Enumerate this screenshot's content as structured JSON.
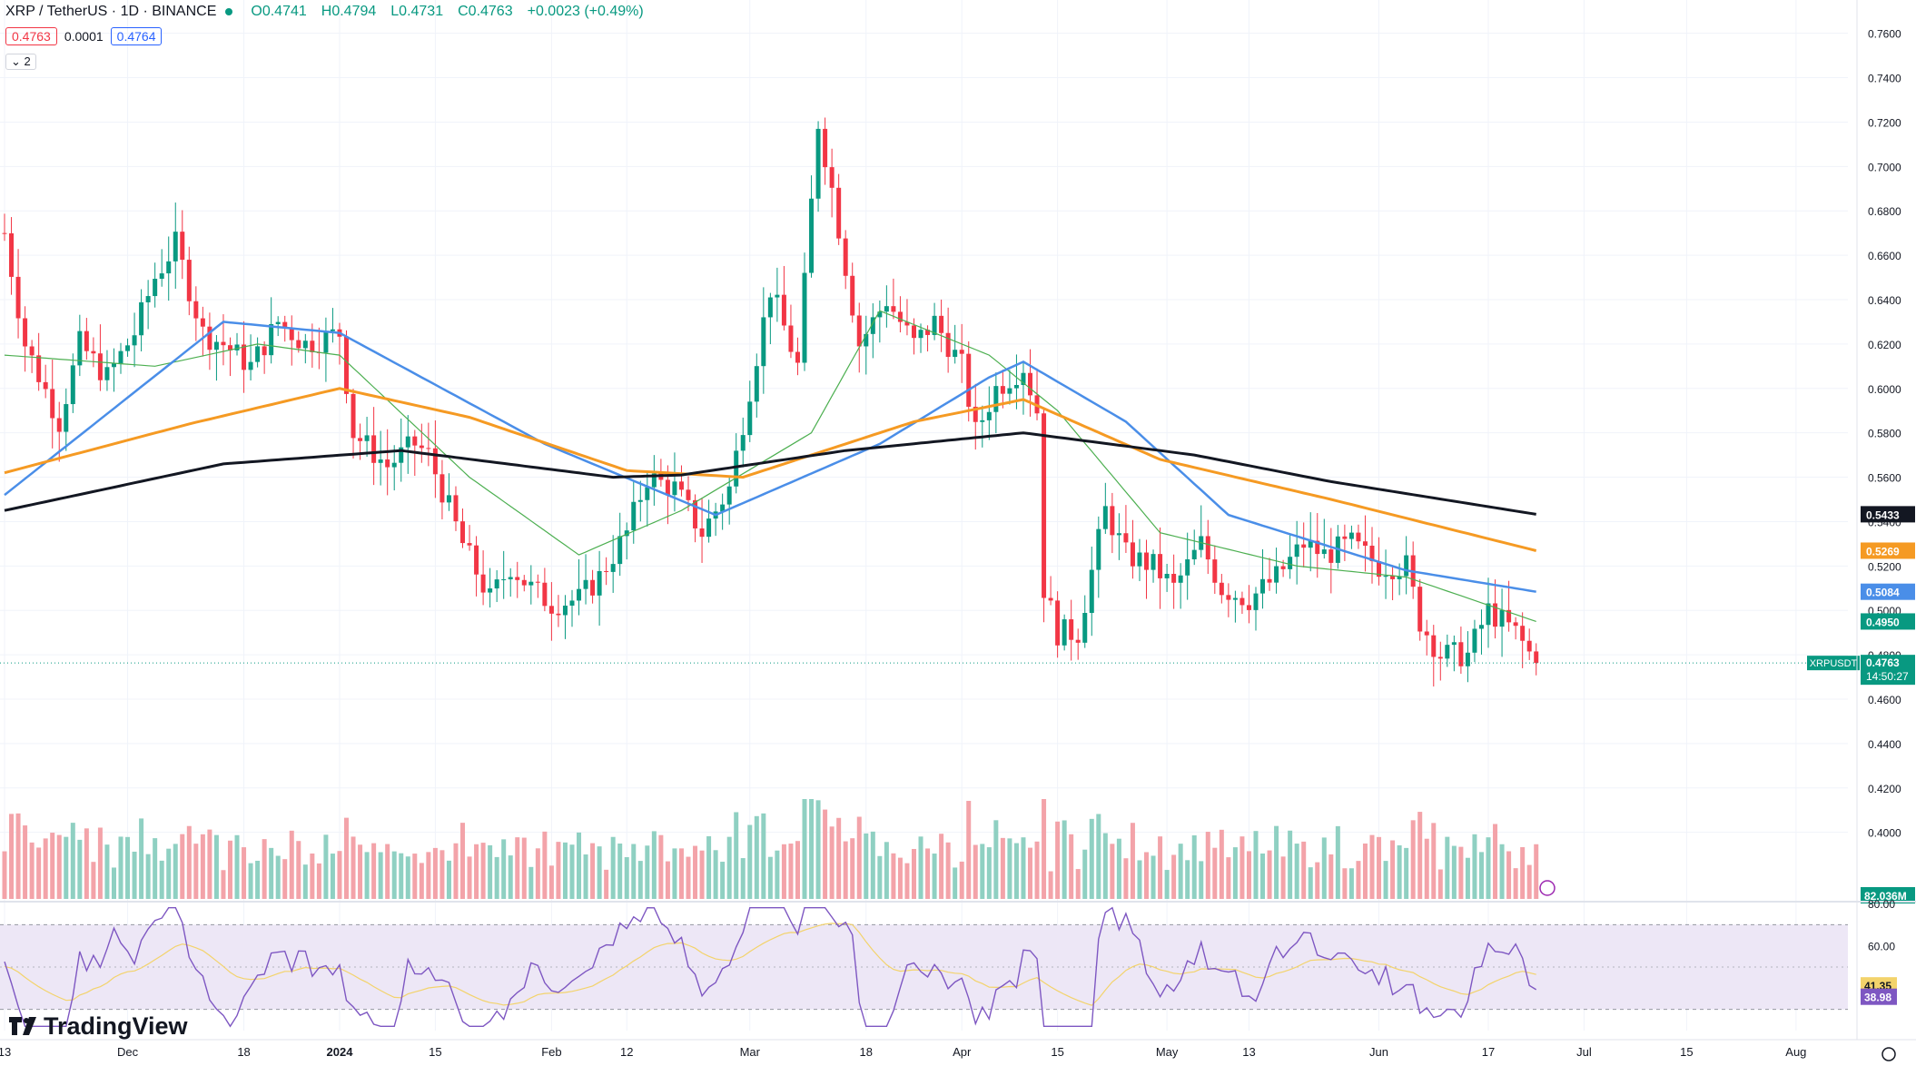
{
  "header": {
    "symbol": "XRP / TetherUS · 1D · BINANCE",
    "open": "O0.4741",
    "high": "H0.4794",
    "low": "L0.4731",
    "close": "C0.4763",
    "change": "+0.0023 (+0.49%)",
    "bid": "0.4763",
    "spread": "0.0001",
    "ask": "0.4764",
    "indicators_collapsed": "2"
  },
  "brand": {
    "name": "TradingView"
  },
  "colors": {
    "up": "#089981",
    "down": "#f23645",
    "up_vol": "#8fd0c2",
    "down_vol": "#f3a3a9",
    "ma_short": "#4caf50",
    "ma_mid": "#4a8ee8",
    "ma_long": "#f59a23",
    "ma_longest": "#131722",
    "rsi": "#7e57c2",
    "rsi_ma": "#f3d36b"
  },
  "chart_data": {
    "type": "candlestick",
    "symbol": "XRPUSDT",
    "interval": "1D",
    "ylim": [
      0.37,
      0.775
    ],
    "price_ticks": [
      "0.7600",
      "0.7400",
      "0.7200",
      "0.7000",
      "0.6800",
      "0.6600",
      "0.6400",
      "0.6200",
      "0.6000",
      "0.5800",
      "0.5600",
      "0.5400",
      "0.5200",
      "0.5000",
      "0.4800",
      "0.4600",
      "0.4400",
      "0.4200",
      "0.4000"
    ],
    "date_labels": [
      "13",
      "Dec",
      "18",
      "2024",
      "15",
      "Feb",
      "12",
      "Mar",
      "18",
      "Apr",
      "15",
      "May",
      "13",
      "Jun",
      "17",
      "Jul",
      "15",
      "Aug"
    ],
    "last_price": {
      "label": "XRPUSDT",
      "value": "0.4763",
      "countdown": "14:50:27"
    },
    "ma_labels": [
      {
        "value": "0.5433",
        "bg": "#131722"
      },
      {
        "value": "0.5269",
        "bg": "#f59a23"
      },
      {
        "value": "0.5084",
        "bg": "#4a8ee8"
      },
      {
        "value": "0.4950",
        "bg": "#089981"
      }
    ],
    "volume_label": "82.036M",
    "rsi": {
      "ticks": [
        "80.00",
        "60.00",
        "40.00"
      ],
      "value": "38.98",
      "ma_value": "41.35",
      "bands": [
        30,
        70
      ],
      "ylim": [
        20,
        80
      ]
    },
    "anchors": [
      [
        "2023-11-13",
        0.67
      ],
      [
        "2023-11-16",
        0.62
      ],
      [
        "2023-11-21",
        0.585
      ],
      [
        "2023-11-24",
        0.62
      ],
      [
        "2023-11-28",
        0.605
      ],
      [
        "2023-12-02",
        0.625
      ],
      [
        "2023-12-05",
        0.65
      ],
      [
        "2023-12-08",
        0.665
      ],
      [
        "2023-12-12",
        0.625
      ],
      [
        "2023-12-15",
        0.62
      ],
      [
        "2023-12-19",
        0.61
      ],
      [
        "2023-12-23",
        0.63
      ],
      [
        "2023-12-27",
        0.62
      ],
      [
        "2024-01-01",
        0.625
      ],
      [
        "2024-01-03",
        0.58
      ],
      [
        "2024-01-08",
        0.565
      ],
      [
        "2024-01-12",
        0.575
      ],
      [
        "2024-01-14",
        0.57
      ],
      [
        "2024-01-19",
        0.53
      ],
      [
        "2024-01-23",
        0.505
      ],
      [
        "2024-01-26",
        0.52
      ],
      [
        "2024-01-29",
        0.51
      ],
      [
        "2024-02-01",
        0.503
      ],
      [
        "2024-02-05",
        0.505
      ],
      [
        "2024-02-08",
        0.515
      ],
      [
        "2024-02-12",
        0.535
      ],
      [
        "2024-02-15",
        0.56
      ],
      [
        "2024-02-19",
        0.555
      ],
      [
        "2024-02-23",
        0.535
      ],
      [
        "2024-02-27",
        0.555
      ],
      [
        "2024-03-01",
        0.6
      ],
      [
        "2024-03-04",
        0.645
      ],
      [
        "2024-03-08",
        0.61
      ],
      [
        "2024-03-11",
        0.72
      ],
      [
        "2024-03-13",
        0.69
      ],
      [
        "2024-03-17",
        0.62
      ],
      [
        "2024-03-21",
        0.64
      ],
      [
        "2024-03-25",
        0.62
      ],
      [
        "2024-03-28",
        0.63
      ],
      [
        "2024-04-01",
        0.61
      ],
      [
        "2024-04-03",
        0.58
      ],
      [
        "2024-04-06",
        0.6
      ],
      [
        "2024-04-10",
        0.61
      ],
      [
        "2024-04-12",
        0.59
      ],
      [
        "2024-04-13",
        0.51
      ],
      [
        "2024-04-15",
        0.49
      ],
      [
        "2024-04-18",
        0.49
      ],
      [
        "2024-04-22",
        0.545
      ],
      [
        "2024-04-25",
        0.525
      ],
      [
        "2024-04-29",
        0.52
      ],
      [
        "2024-05-02",
        0.51
      ],
      [
        "2024-05-06",
        0.53
      ],
      [
        "2024-05-09",
        0.51
      ],
      [
        "2024-05-13",
        0.505
      ],
      [
        "2024-05-17",
        0.515
      ],
      [
        "2024-05-21",
        0.53
      ],
      [
        "2024-05-24",
        0.525
      ],
      [
        "2024-05-28",
        0.53
      ],
      [
        "2024-06-01",
        0.52
      ],
      [
        "2024-06-05",
        0.52
      ],
      [
        "2024-06-07",
        0.495
      ],
      [
        "2024-06-10",
        0.48
      ],
      [
        "2024-06-14",
        0.48
      ],
      [
        "2024-06-17",
        0.5
      ],
      [
        "2024-06-21",
        0.49
      ],
      [
        "2024-06-24",
        0.476
      ]
    ],
    "ma_series": {
      "ma_longest": [
        [
          "2023-11-13",
          0.545
        ],
        [
          "2023-12-15",
          0.566
        ],
        [
          "2024-01-10",
          0.572
        ],
        [
          "2024-02-10",
          0.56
        ],
        [
          "2024-02-20",
          0.561
        ],
        [
          "2024-03-15",
          0.572
        ],
        [
          "2024-04-10",
          0.58
        ],
        [
          "2024-05-05",
          0.57
        ],
        [
          "2024-05-25",
          0.558
        ],
        [
          "2024-06-24",
          0.5433
        ]
      ],
      "ma_long": [
        [
          "2023-11-13",
          0.562
        ],
        [
          "2023-12-10",
          0.584
        ],
        [
          "2024-01-01",
          0.6
        ],
        [
          "2024-01-20",
          0.587
        ],
        [
          "2024-02-12",
          0.563
        ],
        [
          "2024-02-29",
          0.56
        ],
        [
          "2024-03-25",
          0.585
        ],
        [
          "2024-04-10",
          0.595
        ],
        [
          "2024-04-30",
          0.568
        ],
        [
          "2024-05-25",
          0.55
        ],
        [
          "2024-06-24",
          0.5269
        ]
      ],
      "ma_mid": [
        [
          "2023-11-13",
          0.552
        ],
        [
          "2023-12-15",
          0.63
        ],
        [
          "2024-01-01",
          0.625
        ],
        [
          "2024-01-31",
          0.575
        ],
        [
          "2024-02-25",
          0.543
        ],
        [
          "2024-03-20",
          0.575
        ],
        [
          "2024-04-05",
          0.605
        ],
        [
          "2024-04-10",
          0.612
        ],
        [
          "2024-04-25",
          0.585
        ],
        [
          "2024-05-10",
          0.543
        ],
        [
          "2024-06-05",
          0.518
        ],
        [
          "2024-06-24",
          0.5084
        ]
      ],
      "ma_short": [
        [
          "2023-11-13",
          0.615
        ],
        [
          "2023-12-05",
          0.61
        ],
        [
          "2023-12-20",
          0.62
        ],
        [
          "2024-01-01",
          0.615
        ],
        [
          "2024-01-20",
          0.56
        ],
        [
          "2024-02-05",
          0.525
        ],
        [
          "2024-02-20",
          0.545
        ],
        [
          "2024-03-10",
          0.58
        ],
        [
          "2024-03-20",
          0.635
        ],
        [
          "2024-04-05",
          0.615
        ],
        [
          "2024-04-15",
          0.59
        ],
        [
          "2024-04-30",
          0.535
        ],
        [
          "2024-05-20",
          0.52
        ],
        [
          "2024-06-05",
          0.515
        ],
        [
          "2024-06-24",
          0.495
        ]
      ]
    }
  }
}
